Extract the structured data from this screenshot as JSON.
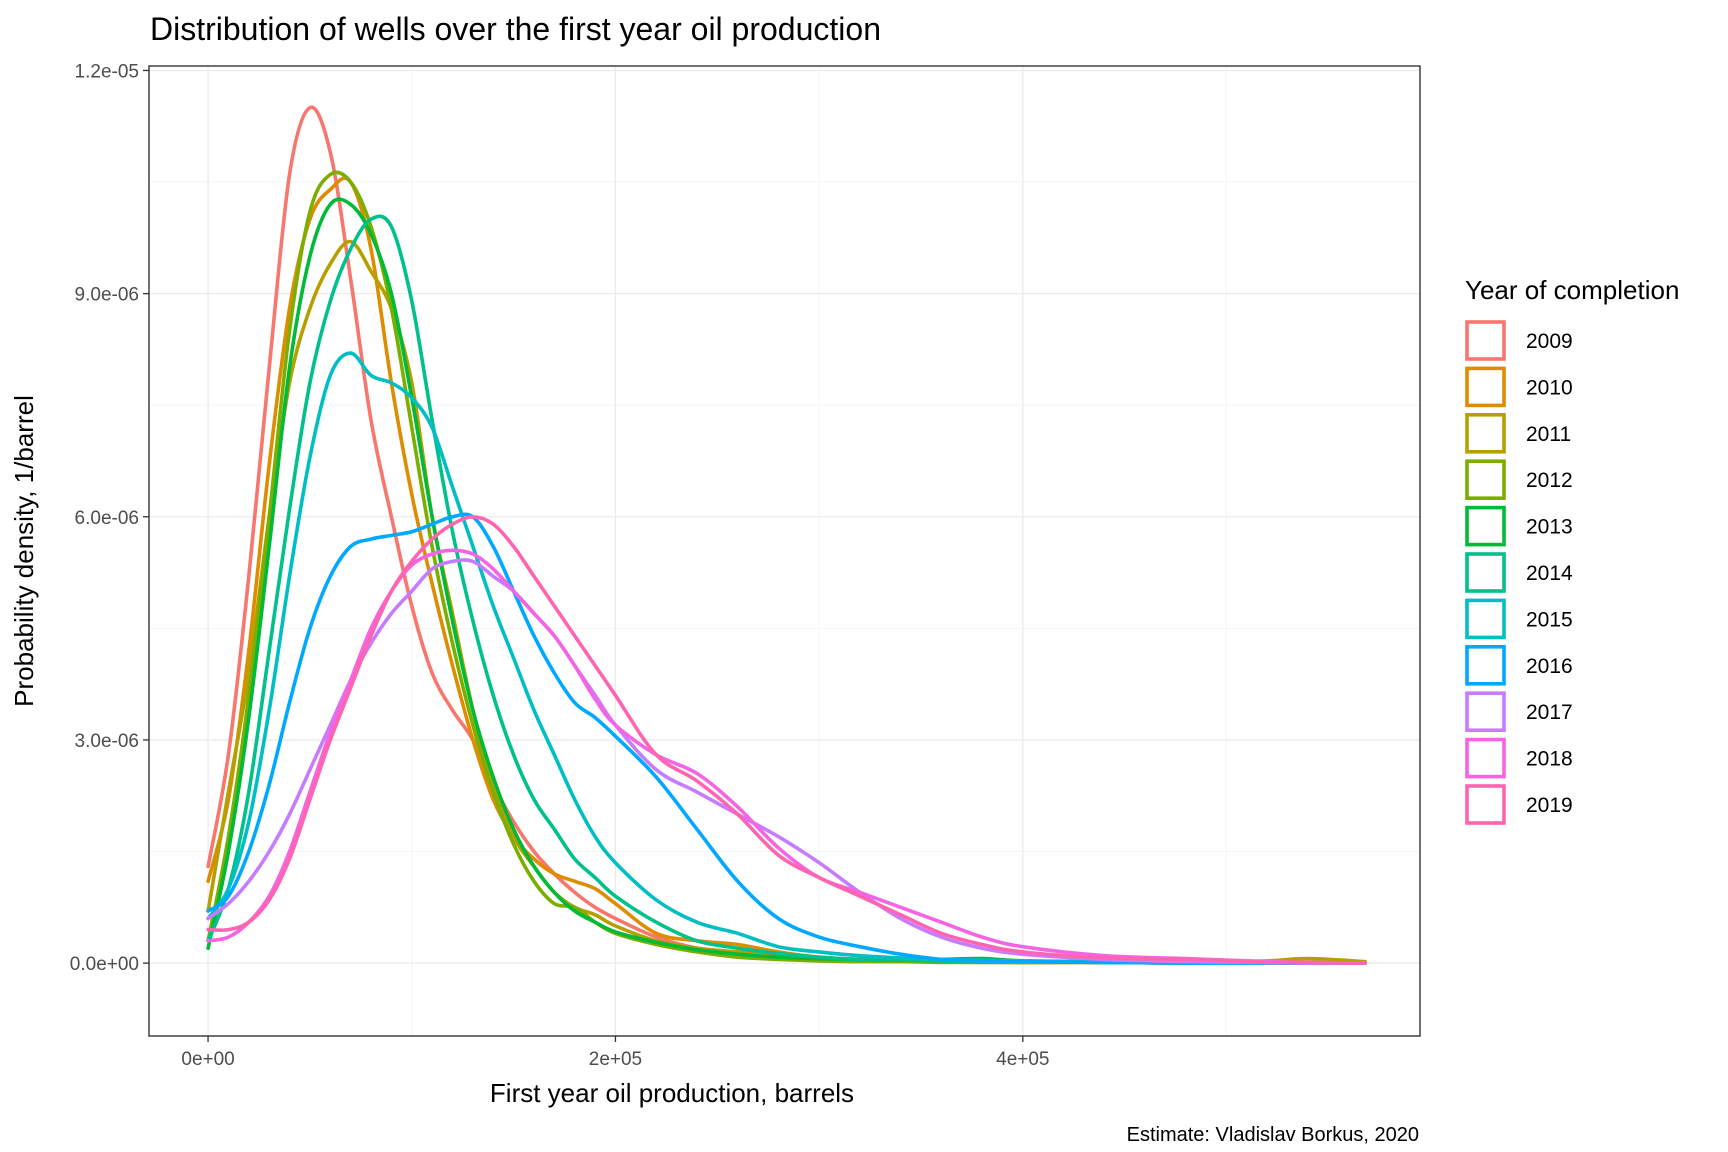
{
  "chart_data": {
    "type": "line",
    "title": "Distribution of wells over the first year oil production",
    "xlabel": "First year oil production, barrels",
    "ylabel": "Probability density, 1/barrel",
    "caption": "Estimate: Vladislav Borkus, 2020",
    "xlim": [
      -29000,
      595000
    ],
    "ylim": [
      -9.8e-07,
      1.206e-05
    ],
    "xticks": [
      0,
      200000,
      400000
    ],
    "xtick_labels": [
      "0e+00",
      "2e+05",
      "4e+05"
    ],
    "yticks": [
      0,
      3e-06,
      6e-06,
      9e-06,
      1.2e-05
    ],
    "ytick_labels": [
      "0.0e+00",
      "3.0e-06",
      "6.0e-06",
      "9.0e-06",
      "1.2e-05"
    ],
    "grid": true,
    "legend": {
      "title": "Year of completion",
      "position": "right"
    },
    "x_values": [
      0,
      10000,
      20000,
      30000,
      40000,
      50000,
      60000,
      70000,
      80000,
      90000,
      100000,
      110000,
      120000,
      130000,
      140000,
      150000,
      160000,
      170000,
      180000,
      190000,
      200000,
      220000,
      240000,
      260000,
      280000,
      300000,
      320000,
      340000,
      360000,
      380000,
      400000,
      440000,
      480000,
      520000,
      540000,
      568000
    ],
    "series": [
      {
        "name": "2009",
        "color": "#F8766D",
        "values": [
          1.3e-06,
          2.8e-06,
          5.2e-06,
          8e-06,
          1.06e-05,
          1.15e-05,
          1.09e-05,
          9.2e-06,
          7.3e-06,
          6e-06,
          4.8e-06,
          3.9e-06,
          3.4e-06,
          3e-06,
          2.4e-06,
          1.9e-06,
          1.5e-06,
          1.2e-06,
          9.5e-07,
          7.5e-07,
          6e-07,
          3.5e-07,
          2e-07,
          1.2e-07,
          8e-08,
          5e-08,
          3e-08,
          2e-08,
          2e-08,
          1e-08,
          1e-08,
          1e-08,
          0.0,
          0.0,
          0.0,
          0.0
        ]
      },
      {
        "name": "2010",
        "color": "#DE8C00",
        "values": [
          1.1e-06,
          2.2e-06,
          4.2e-06,
          6.7e-06,
          8.8e-06,
          1e-05,
          1.04e-05,
          1.05e-05,
          9.6e-06,
          7.8e-06,
          6.3e-06,
          5.1e-06,
          4e-06,
          3e-06,
          2.2e-06,
          1.7e-06,
          1.4e-06,
          1.2e-06,
          1.1e-06,
          1e-06,
          8e-07,
          4e-07,
          3e-07,
          2.5e-07,
          1.5e-07,
          8e-08,
          5e-08,
          3e-08,
          2e-08,
          2e-08,
          1e-08,
          1e-08,
          0.0,
          0.0,
          0.0,
          0.0
        ]
      },
      {
        "name": "2011",
        "color": "#B79F00",
        "values": [
          7e-07,
          2.3e-06,
          3.9e-06,
          6e-06,
          7.8e-06,
          8.8e-06,
          9.4e-06,
          9.7e-06,
          9.3e-06,
          8.8e-06,
          7.8e-06,
          6e-06,
          4.7e-06,
          3.4e-06,
          2.4e-06,
          1.7e-06,
          1.3e-06,
          9.5e-07,
          7.5e-07,
          6.5e-07,
          5e-07,
          3e-07,
          2e-07,
          1.5e-07,
          1e-07,
          6e-08,
          4e-08,
          3e-08,
          2e-08,
          2e-08,
          1e-08,
          1e-08,
          1e-08,
          3e-08,
          6e-08,
          2e-08
        ]
      },
      {
        "name": "2012",
        "color": "#7CAE00",
        "values": [
          3e-07,
          1.7e-06,
          3.6e-06,
          6e-06,
          8.5e-06,
          1.01e-05,
          1.06e-05,
          1.05e-05,
          9.9e-06,
          8.8e-06,
          7.2e-06,
          5.6e-06,
          4.3e-06,
          3.2e-06,
          2.3e-06,
          1.6e-06,
          1.1e-06,
          8e-07,
          7.5e-07,
          5.5e-07,
          4e-07,
          2.5e-07,
          1.5e-07,
          8e-08,
          5e-08,
          3e-08,
          2e-08,
          2e-08,
          1e-08,
          1e-08,
          1e-08,
          1e-08,
          0.0,
          0.0,
          0.0,
          0.0
        ]
      },
      {
        "name": "2013",
        "color": "#00BA38",
        "values": [
          2e-07,
          1.5e-06,
          3.3e-06,
          5.6e-06,
          8e-06,
          9.5e-06,
          1.02e-05,
          1.02e-05,
          9.8e-06,
          9e-06,
          7.6e-06,
          6e-06,
          4.6e-06,
          3.4e-06,
          2.5e-06,
          1.8e-06,
          1.3e-06,
          9.5e-07,
          7e-07,
          5.5e-07,
          4.2e-07,
          2.8e-07,
          1.8e-07,
          1.2e-07,
          8e-08,
          6e-08,
          5e-08,
          4e-08,
          5e-08,
          6e-08,
          3e-08,
          1e-08,
          0.0,
          0.0,
          0.0,
          0.0
        ]
      },
      {
        "name": "2014",
        "color": "#00C08B",
        "values": [
          3e-07,
          1e-06,
          2.3e-06,
          4.2e-06,
          6.1e-06,
          7.8e-06,
          8.9e-06,
          9.6e-06,
          1e-05,
          9.9e-06,
          8.9e-06,
          7.3e-06,
          5.8e-06,
          4.6e-06,
          3.6e-06,
          2.8e-06,
          2.2e-06,
          1.8e-06,
          1.4e-06,
          1.15e-06,
          9e-07,
          5.5e-07,
          3e-07,
          2e-07,
          1.3e-07,
          8e-08,
          5e-08,
          4e-08,
          3e-08,
          2e-08,
          2e-08,
          1e-08,
          0.0,
          0.0,
          0.0,
          0.0
        ]
      },
      {
        "name": "2015",
        "color": "#00BFC4",
        "values": [
          6e-07,
          1e-06,
          1.9e-06,
          3.4e-06,
          5.2e-06,
          6.8e-06,
          7.9e-06,
          8.2e-06,
          7.9e-06,
          7.8e-06,
          7.6e-06,
          7.2e-06,
          6.4e-06,
          5.6e-06,
          4.8e-06,
          4.1e-06,
          3.4e-06,
          2.8e-06,
          2.2e-06,
          1.7e-06,
          1.35e-06,
          8.5e-07,
          5.5e-07,
          4e-07,
          2.2e-07,
          1.5e-07,
          1e-07,
          7e-08,
          5e-08,
          4e-08,
          3e-08,
          2e-08,
          1e-08,
          0.0,
          0.0,
          0.0
        ]
      },
      {
        "name": "2016",
        "color": "#00A9FF",
        "values": [
          7e-07,
          9e-07,
          1.5e-06,
          2.4e-06,
          3.5e-06,
          4.5e-06,
          5.2e-06,
          5.6e-06,
          5.7e-06,
          5.75e-06,
          5.8e-06,
          5.9e-06,
          6e-06,
          6e-06,
          5.6e-06,
          5e-06,
          4.4e-06,
          3.9e-06,
          3.5e-06,
          3.3e-06,
          3.05e-06,
          2.5e-06,
          1.8e-06,
          1.1e-06,
          6e-07,
          3.5e-07,
          2.2e-07,
          1.2e-07,
          5e-08,
          3e-08,
          2e-08,
          1e-08,
          0.0,
          0.0,
          0.0,
          0.0
        ]
      },
      {
        "name": "2017",
        "color": "#C77CFF",
        "values": [
          6e-07,
          8e-07,
          1.1e-06,
          1.5e-06,
          2e-06,
          2.6e-06,
          3.2e-06,
          3.8e-06,
          4.3e-06,
          4.7e-06,
          5e-06,
          5.3e-06,
          5.4e-06,
          5.4e-06,
          5.2e-06,
          5e-06,
          4.7e-06,
          4.4e-06,
          4e-06,
          3.6e-06,
          3.2e-06,
          2.6e-06,
          2.3e-06,
          2e-06,
          1.7e-06,
          1.35e-06,
          9.5e-07,
          6e-07,
          3.5e-07,
          2e-07,
          1.2e-07,
          5e-08,
          2e-08,
          1e-08,
          0.0,
          0.0
        ]
      },
      {
        "name": "2018",
        "color": "#F564E3",
        "values": [
          3e-07,
          3.5e-07,
          5.5e-07,
          9e-07,
          1.5e-06,
          2.3e-06,
          3.1e-06,
          3.8e-06,
          4.5e-06,
          5e-06,
          5.35e-06,
          5.5e-06,
          5.55e-06,
          5.5e-06,
          5.3e-06,
          5e-06,
          4.7e-06,
          4.4e-06,
          4e-06,
          3.55e-06,
          3.2e-06,
          2.8e-06,
          2.55e-06,
          2.1e-06,
          1.55e-06,
          1.15e-06,
          9.5e-07,
          7.5e-07,
          5.5e-07,
          3.5e-07,
          2.2e-07,
          1e-07,
          6e-08,
          2e-08,
          1e-08,
          0.0
        ]
      },
      {
        "name": "2019",
        "color": "#FF64B0",
        "values": [
          4.5e-07,
          4.5e-07,
          5.5e-07,
          8.5e-07,
          1.4e-06,
          2.2e-06,
          3e-06,
          3.7e-06,
          4.4e-06,
          5e-06,
          5.4e-06,
          5.7e-06,
          5.9e-06,
          6e-06,
          5.9e-06,
          5.6e-06,
          5.2e-06,
          4.8e-06,
          4.4e-06,
          4e-06,
          3.6e-06,
          2.8e-06,
          2.45e-06,
          2e-06,
          1.45e-06,
          1.15e-06,
          9e-07,
          6.5e-07,
          4e-07,
          2.5e-07,
          1.5e-07,
          7e-08,
          5e-08,
          1e-08,
          1e-08,
          0.0
        ]
      }
    ]
  }
}
